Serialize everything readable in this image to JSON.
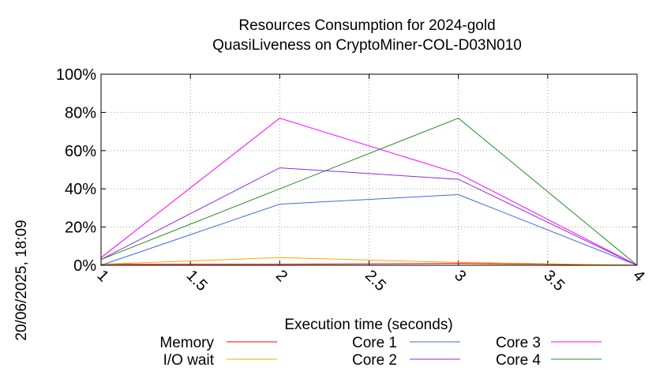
{
  "chart_data": {
    "type": "line",
    "title": [
      "Resources Consumption for 2024-gold",
      "QuasiLiveness on CryptoMiner-COL-D03N010"
    ],
    "xlabel": "Execution time (seconds)",
    "ylabel": "",
    "side_label": "20/06/2025, 18:09",
    "xlim": [
      1,
      4
    ],
    "ylim": [
      0,
      100
    ],
    "x_ticks": [
      1,
      1.5,
      2,
      2.5,
      3,
      3.5,
      4
    ],
    "x_tick_labels": [
      "1",
      "1.5",
      "2",
      "2.5",
      "3",
      "3.5",
      "4"
    ],
    "y_ticks": [
      0,
      20,
      40,
      60,
      80,
      100
    ],
    "y_tick_labels": [
      "0%",
      "20%",
      "40%",
      "60%",
      "80%",
      "100%"
    ],
    "grid": true,
    "legend_position": "bottom",
    "x": [
      1,
      2,
      3,
      4
    ],
    "series": [
      {
        "name": "Memory",
        "color": "#ff0000",
        "values": [
          0.5,
          0.5,
          1,
          0
        ]
      },
      {
        "name": "I/O wait",
        "color": "#ffa500",
        "values": [
          0.5,
          4,
          1.5,
          0
        ]
      },
      {
        "name": "Core 1",
        "color": "#4169e1",
        "values": [
          0,
          32,
          37,
          0
        ]
      },
      {
        "name": "Core 2",
        "color": "#8a2be2",
        "values": [
          3,
          51,
          45,
          0
        ]
      },
      {
        "name": "Core 3",
        "color": "#ff00ff",
        "values": [
          4,
          77,
          48,
          0
        ]
      },
      {
        "name": "Core 4",
        "color": "#228b22",
        "values": [
          3,
          40,
          77,
          0
        ]
      }
    ]
  }
}
